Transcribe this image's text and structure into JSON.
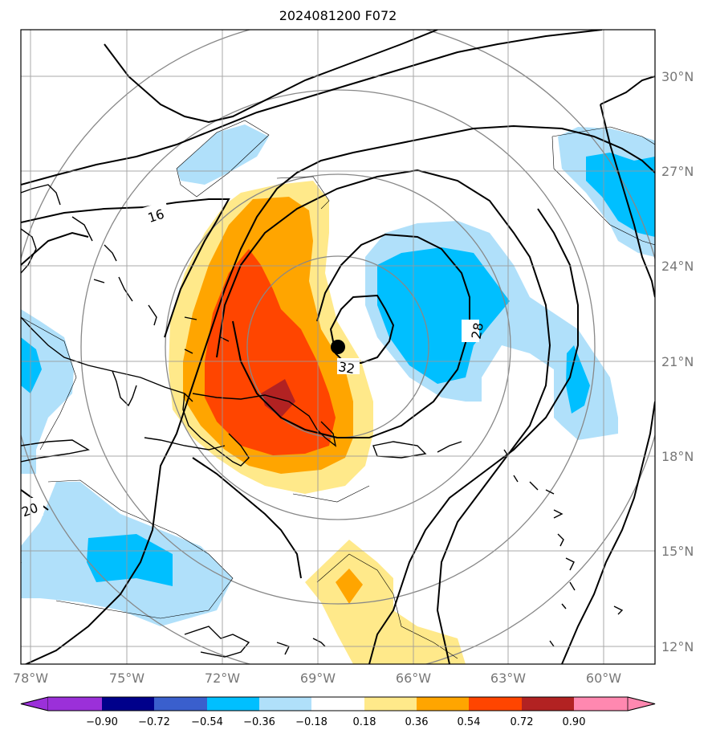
{
  "title": "2024081200 F072",
  "chart_data": {
    "type": "map",
    "title": "2024081200 F072",
    "lon_ticks": [
      "78°W",
      "75°W",
      "72°W",
      "69°W",
      "66°W",
      "63°W",
      "60°W"
    ],
    "lat_ticks": [
      "30°N",
      "27°N",
      "24°N",
      "21°N",
      "18°N",
      "15°N",
      "12°N"
    ],
    "colorbar": {
      "labels": [
        "−0.90",
        "−0.72",
        "−0.54",
        "−0.36",
        "−0.18",
        "0.18",
        "0.36",
        "0.54",
        "0.72",
        "0.90"
      ],
      "colors": [
        "#9b30d9",
        "#00008b",
        "#3a5fcd",
        "#00bfff",
        "#b0e0fa",
        "#ffffff",
        "#ffe98a",
        "#ffa500",
        "#ff4500",
        "#b22222",
        "#ff88b0"
      ]
    },
    "contour_labels": [
      "16",
      "20",
      "28",
      "32"
    ],
    "storm_center": {
      "lon": "68.3°W",
      "lat": "21.5°N"
    }
  }
}
